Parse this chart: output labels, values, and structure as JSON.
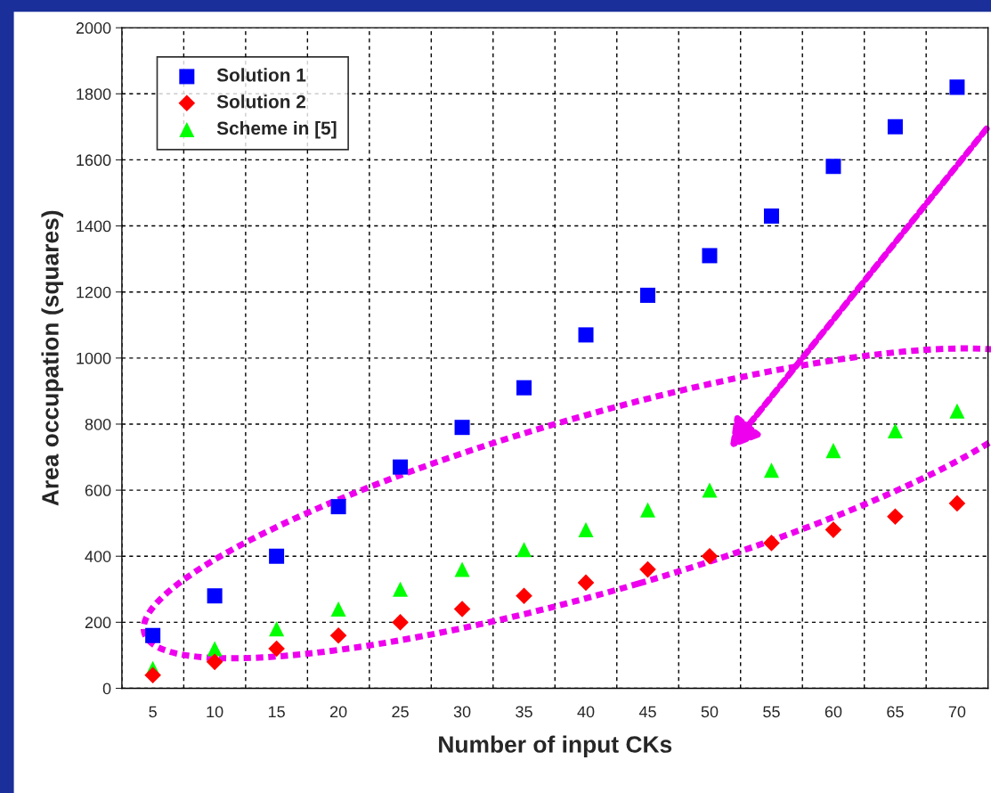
{
  "chart_data": {
    "type": "scatter",
    "xlabel": "Number of input CKs",
    "ylabel": "Area occupation (squares)",
    "categories": [
      "5",
      "10",
      "15",
      "20",
      "25",
      "30",
      "35",
      "40",
      "45",
      "50",
      "55",
      "60",
      "65",
      "70"
    ],
    "series": [
      {
        "name": "Solution 1",
        "color": "#0000ff",
        "marker": "square",
        "values": [
          160,
          280,
          400,
          550,
          670,
          790,
          910,
          1070,
          1190,
          1310,
          1430,
          1580,
          1700,
          1820
        ]
      },
      {
        "name": "Solution 2",
        "color": "#ff0000",
        "marker": "diamond",
        "values": [
          40,
          80,
          120,
          160,
          200,
          240,
          280,
          320,
          360,
          400,
          440,
          480,
          520,
          560
        ]
      },
      {
        "name": "Scheme in [5]",
        "color": "#00ff00",
        "marker": "triangle",
        "values": [
          60,
          120,
          180,
          240,
          300,
          360,
          420,
          480,
          540,
          600,
          660,
          720,
          780,
          840
        ]
      }
    ],
    "ylim": [
      0,
      2000
    ],
    "yticks": [
      0,
      200,
      400,
      600,
      800,
      1000,
      1200,
      1400,
      1600,
      1800,
      2000
    ],
    "grid": true,
    "legend": "top left"
  }
}
